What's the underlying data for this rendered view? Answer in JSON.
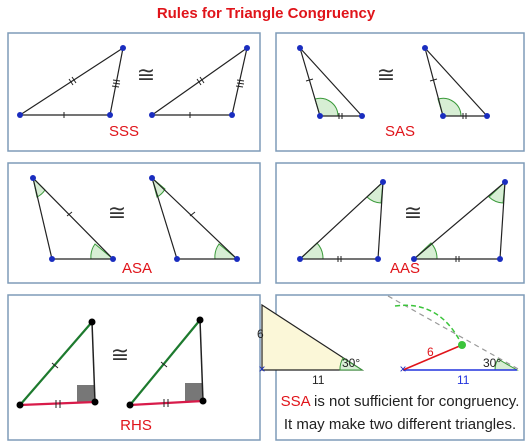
{
  "title": "Rules for Triangle Congruency",
  "panels": [
    {
      "label": "SSS",
      "symbol": "≅"
    },
    {
      "label": "SAS",
      "symbol": "≅"
    },
    {
      "label": "ASA",
      "symbol": "≅"
    },
    {
      "label": "AAS",
      "symbol": "≅"
    },
    {
      "label": "RHS",
      "symbol": "≅"
    }
  ],
  "ssa": {
    "label": "SSA",
    "left_side": "6",
    "left_base": "11",
    "left_angle": "30°",
    "right_side": "6",
    "right_base": "11",
    "right_angle": "30°",
    "caption_rest": " is not sufficient for congruency.",
    "caption_line2": "It may make two different triangles."
  }
}
